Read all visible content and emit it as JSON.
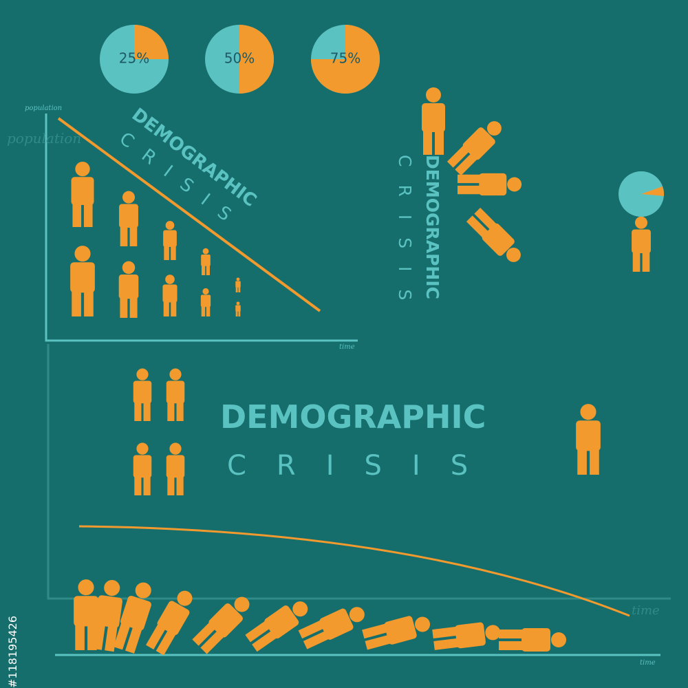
{
  "pies": [
    {
      "label": "25%",
      "value": 25
    },
    {
      "label": "50%",
      "value": 50
    },
    {
      "label": "75%",
      "value": 75
    }
  ],
  "texts": {
    "population": "population",
    "time": "time",
    "demographic": "DEMOGRAPHIC",
    "crisis": "CRISIS",
    "stock_id": "#118195426"
  }
}
